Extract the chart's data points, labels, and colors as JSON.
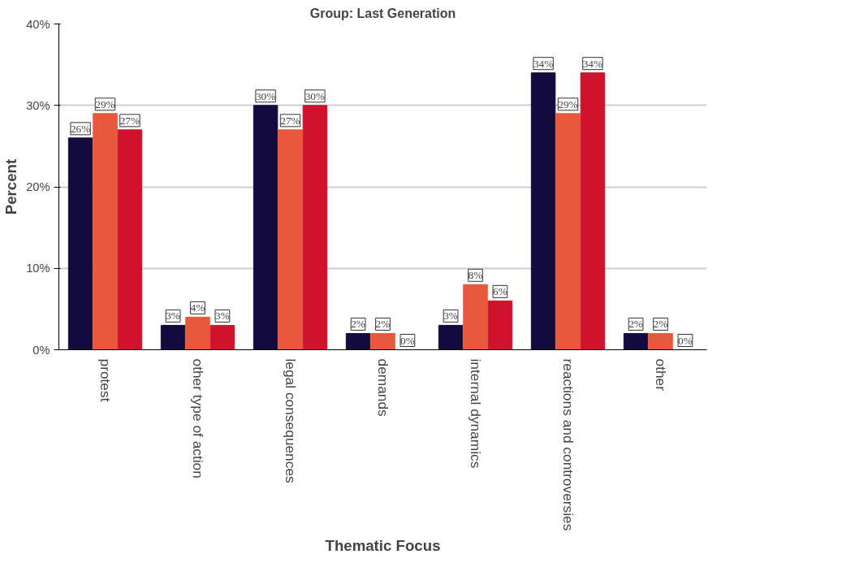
{
  "chart_data": {
    "type": "bar",
    "title": "Group: Last Generation",
    "xlabel": "Thematic Focus",
    "ylabel": "Percent",
    "categories": [
      "protest",
      "other type of action",
      "legal consequences",
      "demands",
      "internal dynamics",
      "reactions and controversies",
      "other"
    ],
    "series": [
      {
        "color": "#130b3e",
        "values": [
          26,
          3,
          30,
          2,
          3,
          34,
          2
        ],
        "value_labels": [
          "26%",
          "3%",
          "30%",
          "2%",
          "3%",
          "34%",
          "2%"
        ]
      },
      {
        "color": "#e8583c",
        "values": [
          29,
          4,
          27,
          2,
          8,
          29,
          2
        ],
        "value_labels": [
          "29%",
          "4%",
          "27%",
          "2%",
          "8%",
          "29%",
          "2%"
        ]
      },
      {
        "color": "#d0122c",
        "values": [
          27,
          3,
          30,
          0,
          6,
          34,
          0
        ],
        "value_labels": [
          "27%",
          "3%",
          "30%",
          "0%",
          "6%",
          "34%",
          "0%"
        ]
      }
    ],
    "ylim": [
      0,
      40
    ],
    "yticks": [
      {
        "value": 0,
        "label": "0%"
      },
      {
        "value": 10,
        "label": "10%"
      },
      {
        "value": 20,
        "label": "20%"
      },
      {
        "value": 30,
        "label": "30%"
      },
      {
        "value": 40,
        "label": "40%"
      }
    ],
    "grid": "y"
  }
}
